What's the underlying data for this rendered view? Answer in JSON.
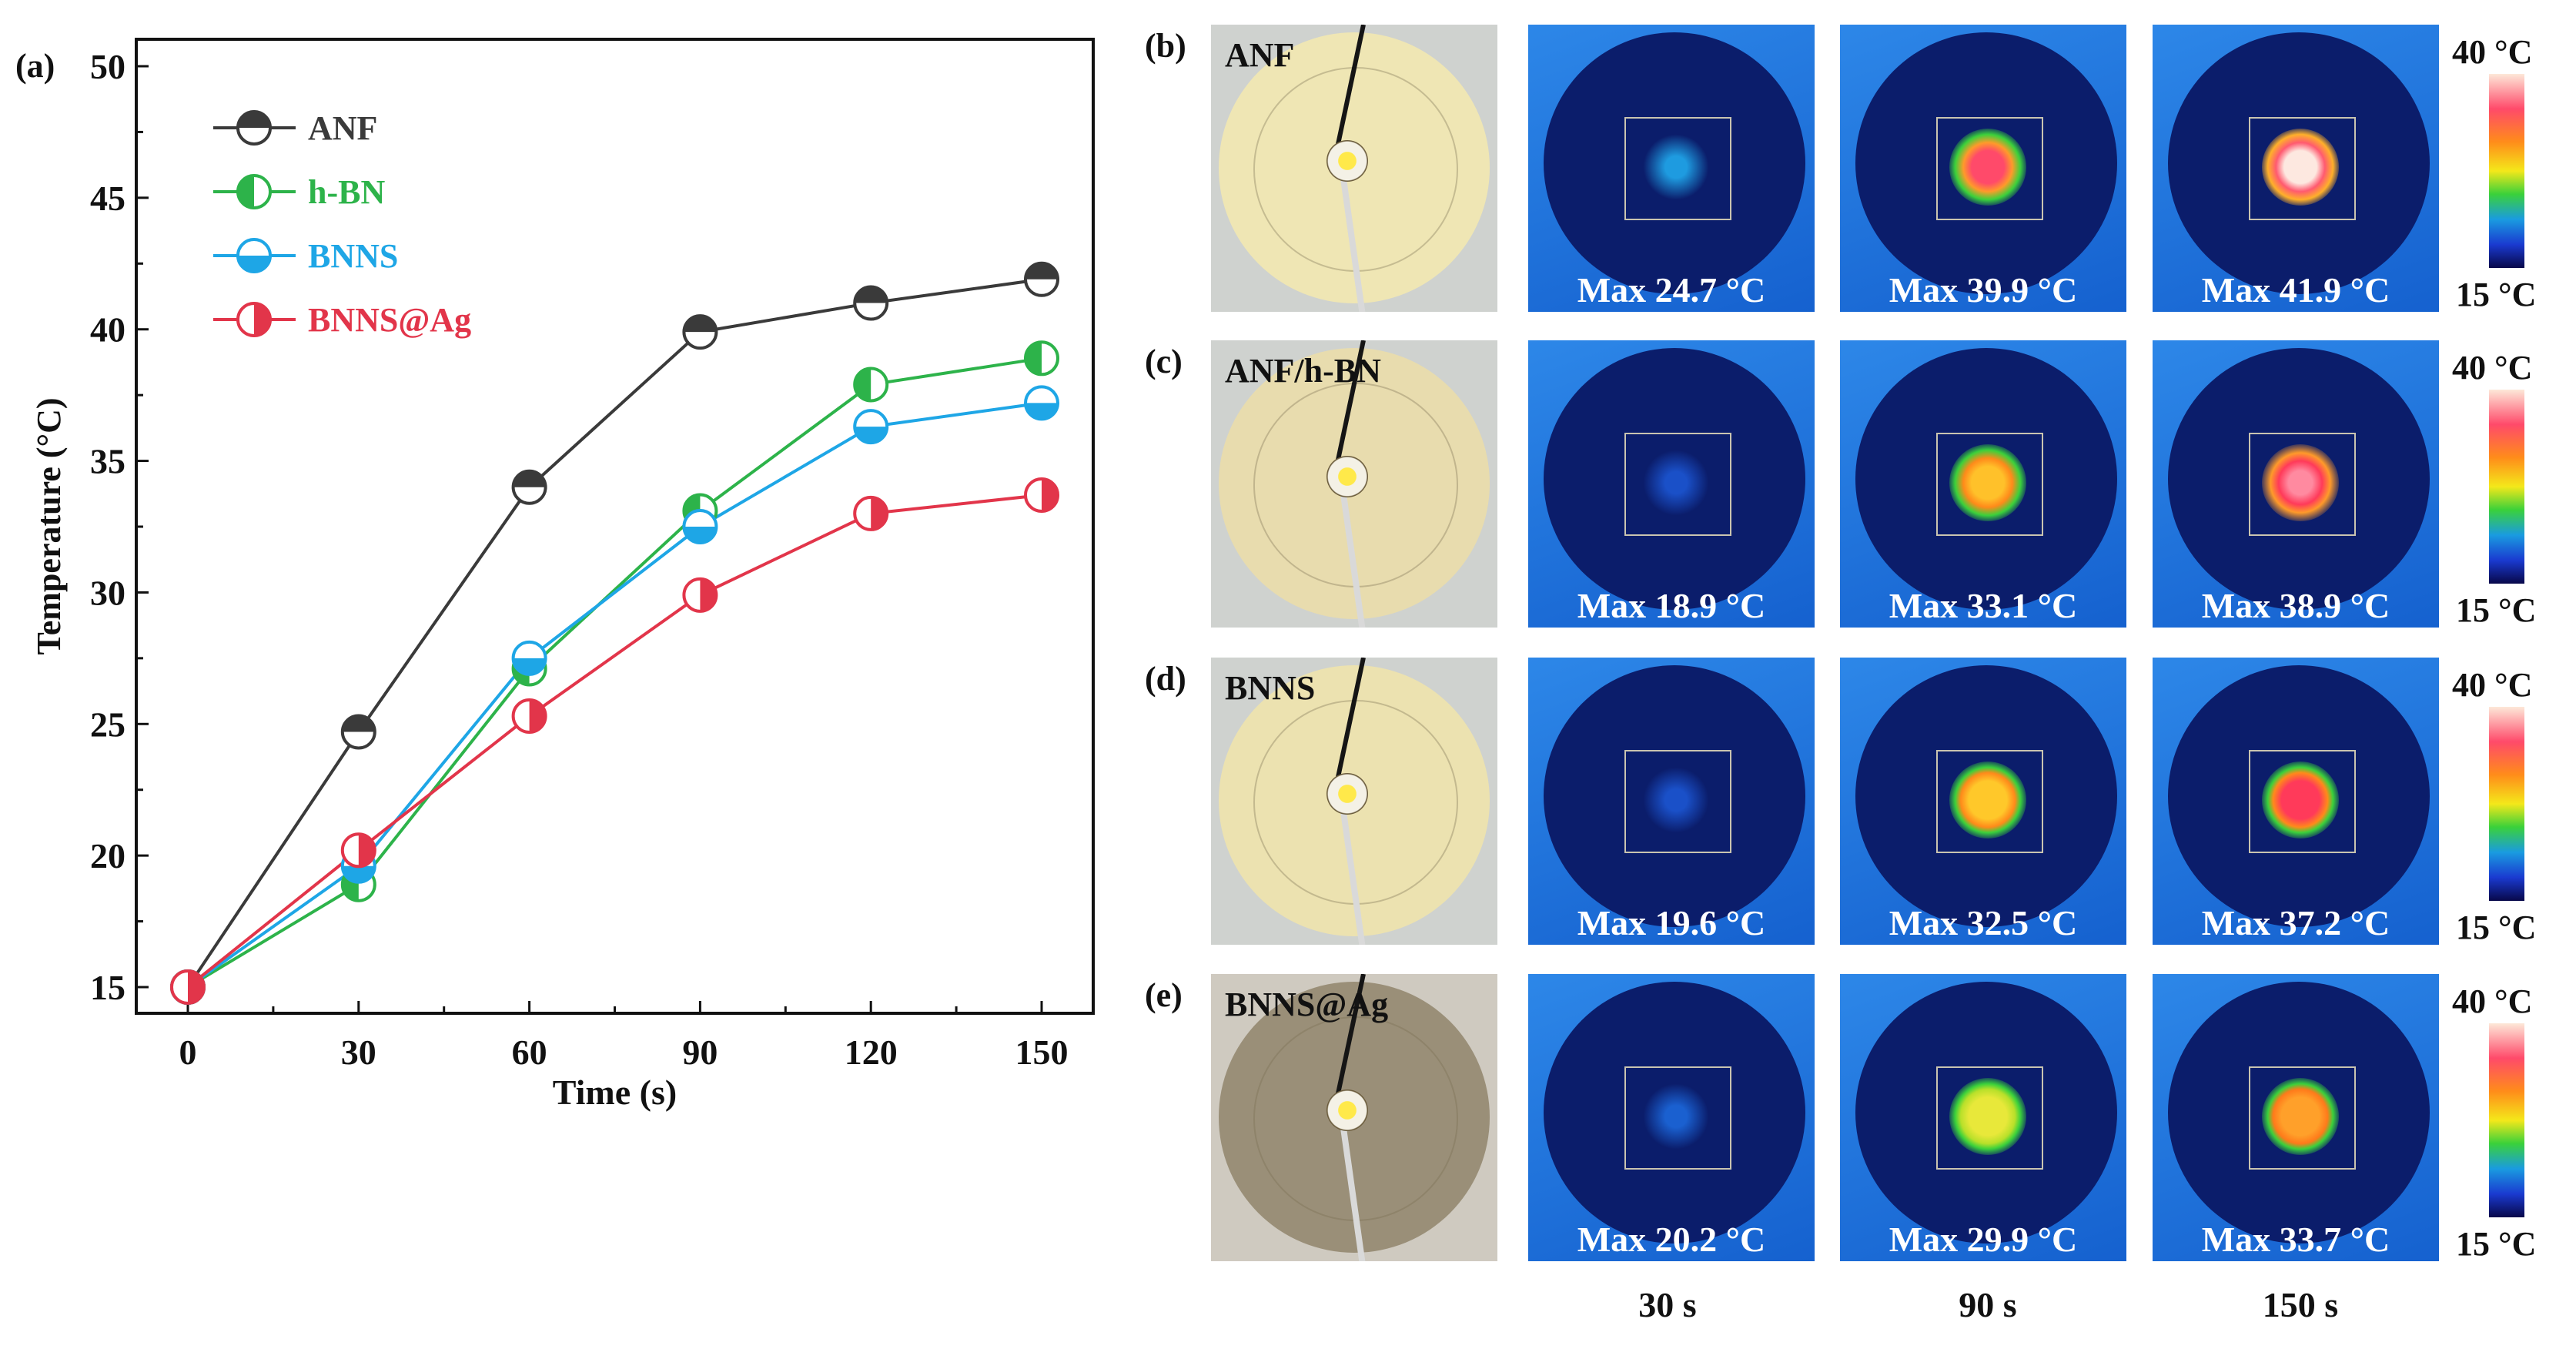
{
  "chart_data": {
    "type": "line",
    "panel_label": "(a)",
    "xlabel": "Time (s)",
    "ylabel": "Temperature (°C)",
    "x": [
      0,
      30,
      60,
      90,
      120,
      150
    ],
    "xlim": [
      -5,
      155
    ],
    "ylim": [
      13.5,
      51
    ],
    "xticks": [
      0,
      30,
      60,
      90,
      120,
      150
    ],
    "yticks": [
      15,
      20,
      25,
      30,
      35,
      40,
      45,
      50
    ],
    "legend_position": "top-left",
    "series": [
      {
        "name": "ANF",
        "color": "#3a3a3a",
        "marker": "top-half",
        "values": [
          15,
          24.7,
          34.0,
          39.9,
          41.0,
          41.9
        ]
      },
      {
        "name": "h-BN",
        "color": "#2db34a",
        "marker": "left-half",
        "values": [
          15,
          18.9,
          27.1,
          33.1,
          37.9,
          38.9
        ]
      },
      {
        "name": "BNNS",
        "color": "#1ea6e6",
        "marker": "bottom-half",
        "values": [
          15,
          19.6,
          27.5,
          32.5,
          36.3,
          37.2
        ]
      },
      {
        "name": "BNNS@Ag",
        "color": "#e2354a",
        "marker": "right-half",
        "values": [
          15,
          20.2,
          25.3,
          29.9,
          33.0,
          33.7
        ]
      }
    ]
  },
  "thermal": {
    "colorbar": {
      "max": "40 °C",
      "min": "15 °C"
    },
    "times": [
      "30 s",
      "90 s",
      "150 s"
    ],
    "rows": [
      {
        "label": "(b)",
        "sample": "ANF",
        "disc_color": "#efe6b4",
        "max": [
          "Max 24.7 °C",
          "Max 39.9 °C",
          "Max 41.9 °C"
        ]
      },
      {
        "label": "(c)",
        "sample": "ANF/h-BN",
        "disc_color": "#e8dcae",
        "max": [
          "Max 18.9 °C",
          "Max 33.1 °C",
          "Max 38.9 °C"
        ]
      },
      {
        "label": "(d)",
        "sample": "BNNS",
        "disc_color": "#ece2b0",
        "max": [
          "Max 19.6 °C",
          "Max 32.5 °C",
          "Max 37.2 °C"
        ]
      },
      {
        "label": "(e)",
        "sample": "BNNS@Ag",
        "disc_color": "#9a8f78",
        "max": [
          "Max 20.2 °C",
          "Max 29.9 °C",
          "Max 33.7 °C"
        ]
      }
    ]
  }
}
